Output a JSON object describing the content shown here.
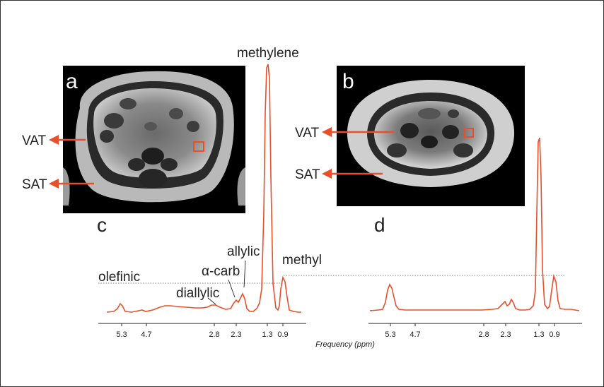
{
  "colors": {
    "spectrum": "#e8502a",
    "arrow": "#e8502a",
    "text": "#222222",
    "mri_background": "#000000"
  },
  "panels": {
    "a": {
      "letter": "a",
      "labels": {
        "vat": "VAT",
        "sat": "SAT"
      }
    },
    "b": {
      "letter": "b",
      "labels": {
        "vat": "VAT",
        "sat": "SAT"
      }
    },
    "c": {
      "letter": "c"
    },
    "d": {
      "letter": "d"
    }
  },
  "peak_labels": {
    "methylene": "methylene",
    "methyl": "methyl",
    "allylic": "allylic",
    "alpha_carb": "α-carb",
    "diallylic": "diallylic",
    "olefinic": "olefinic"
  },
  "x_axis": {
    "title": "Frequency (ppm)",
    "ticks_c": [
      "5.3",
      "4.7",
      "2.8",
      "2.3",
      "1.3",
      "0.9"
    ],
    "ticks_d": [
      "5.3",
      "4.7",
      "2.8",
      "2.3",
      "1.3",
      "0.9"
    ]
  },
  "chart_data": [
    {
      "type": "line",
      "panel": "c",
      "x_unit": "ppm",
      "x_ticks": [
        5.3,
        4.7,
        2.8,
        2.3,
        1.3,
        0.9
      ],
      "peaks": [
        {
          "label": "olefinic",
          "ppm": 5.3,
          "relative_height": 0.04
        },
        {
          "label": "diallylic",
          "ppm": 2.8,
          "relative_height": 0.02
        },
        {
          "label": "α-carb",
          "ppm": 2.3,
          "relative_height": 0.05
        },
        {
          "label": "allylic",
          "ppm": 2.1,
          "relative_height": 0.07
        },
        {
          "label": "methylene",
          "ppm": 1.3,
          "relative_height": 1.0
        },
        {
          "label": "methyl",
          "ppm": 0.9,
          "relative_height": 0.14
        }
      ]
    },
    {
      "type": "line",
      "panel": "d",
      "x_unit": "ppm",
      "x_ticks": [
        5.3,
        4.7,
        2.8,
        2.3,
        1.3,
        0.9
      ],
      "peaks": [
        {
          "ppm": 5.3,
          "relative_height": 0.15
        },
        {
          "ppm": 2.3,
          "relative_height": 0.05
        },
        {
          "ppm": 2.1,
          "relative_height": 0.06
        },
        {
          "ppm": 1.3,
          "relative_height": 1.0
        },
        {
          "ppm": 0.9,
          "relative_height": 0.19
        }
      ]
    }
  ]
}
